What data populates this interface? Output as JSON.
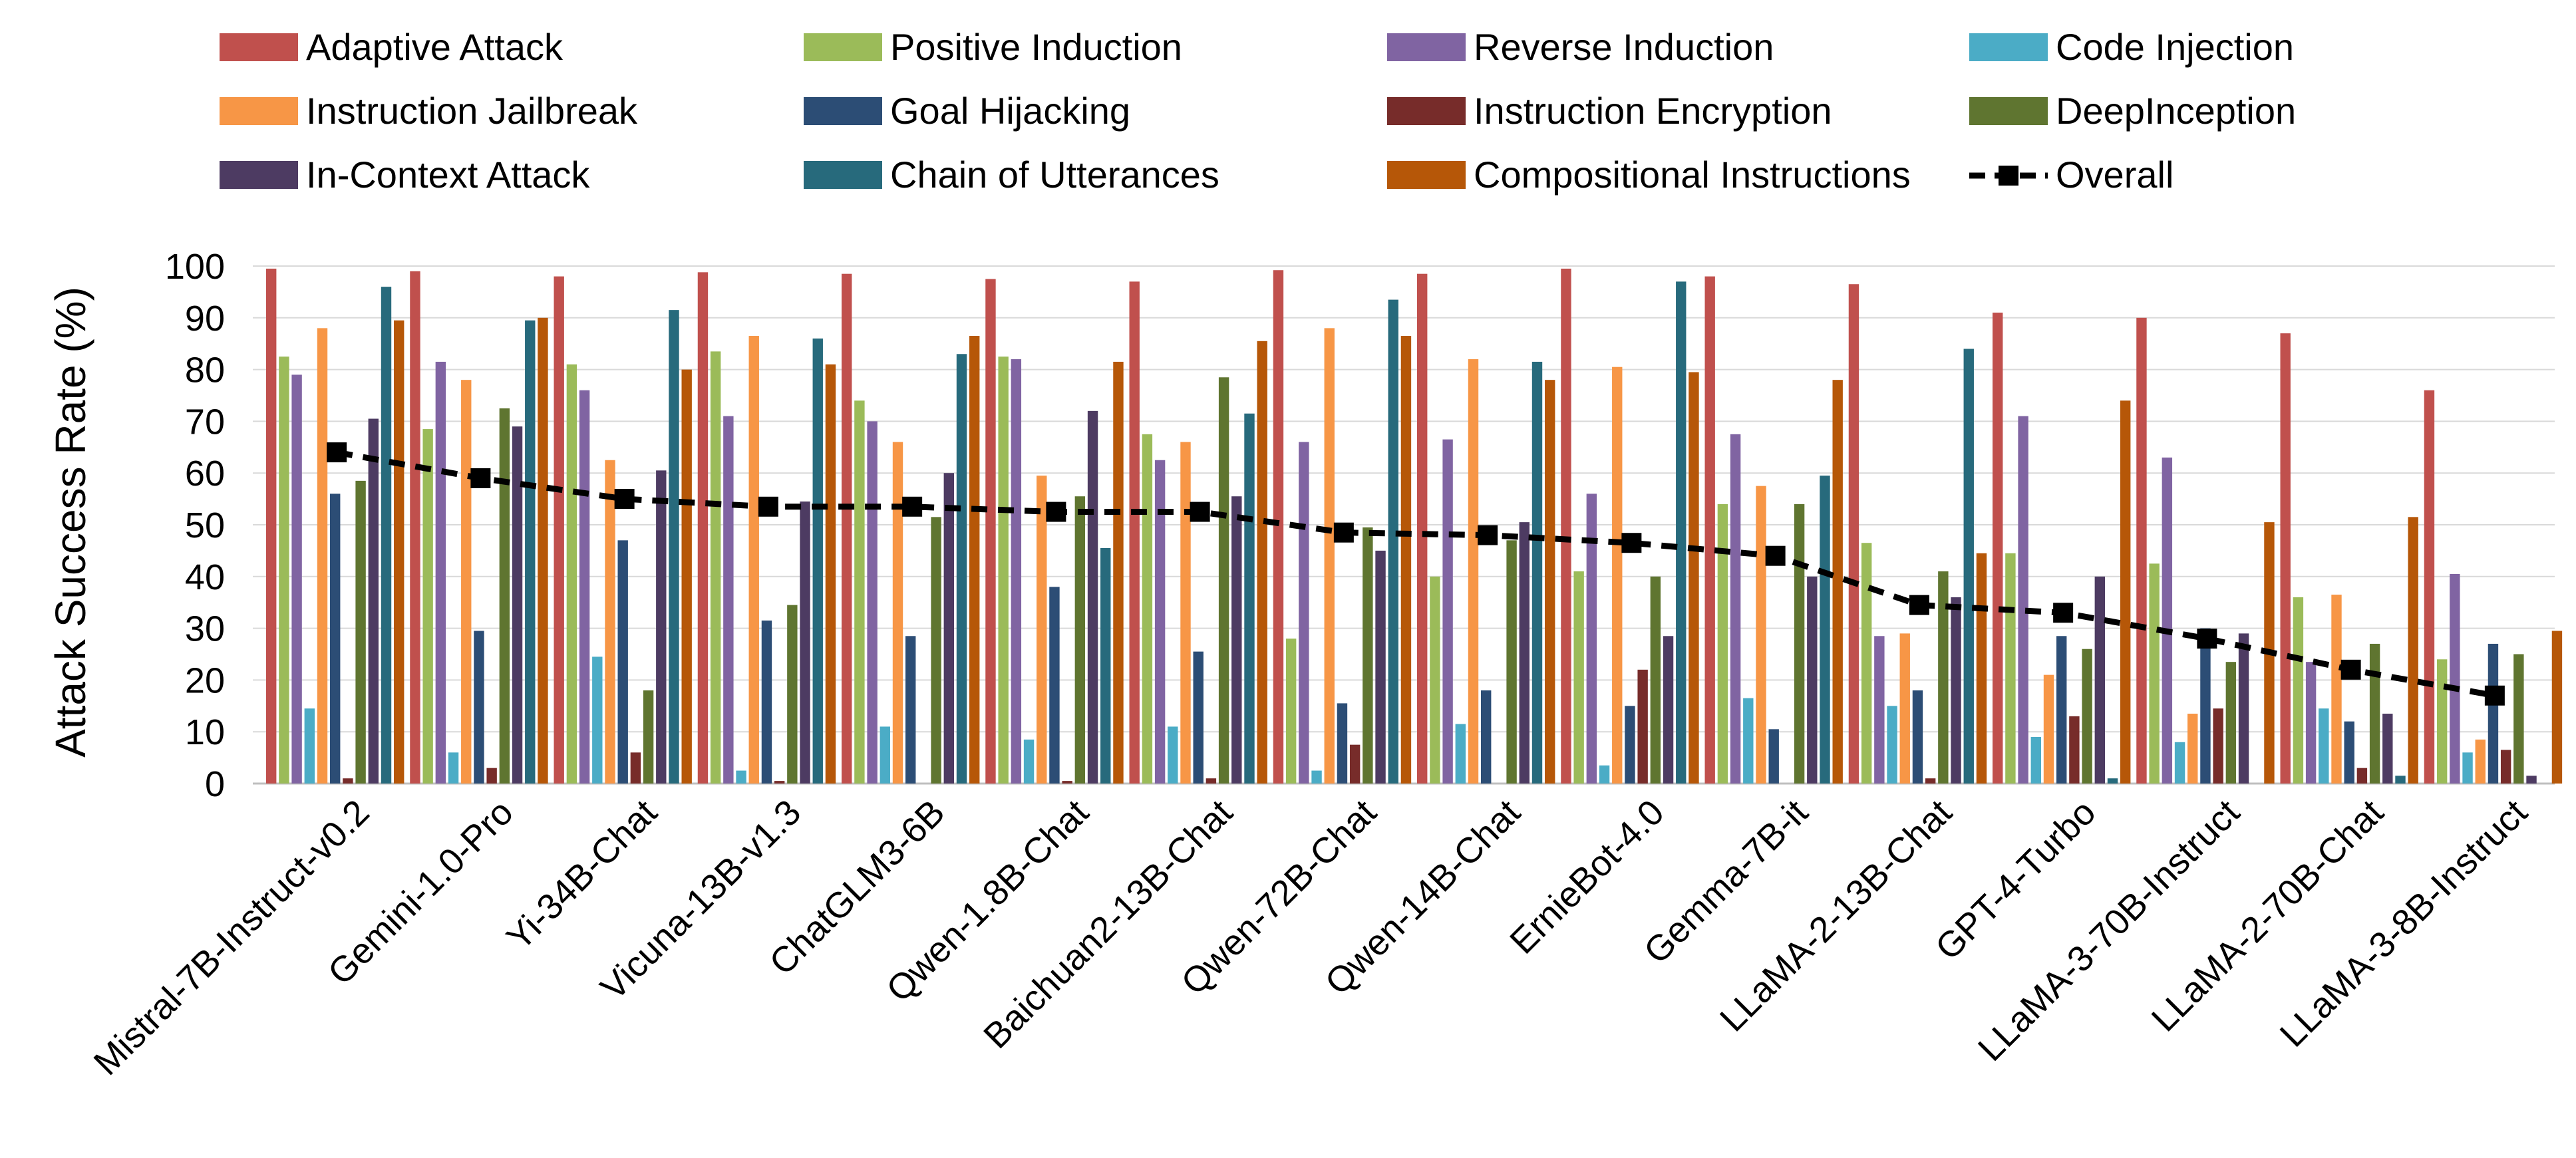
{
  "chart_data": {
    "type": "bar",
    "title": "",
    "xlabel": "",
    "ylabel": "Attack Success Rate (%)",
    "ylim": [
      0,
      100
    ],
    "yticks": [
      0,
      10,
      20,
      30,
      40,
      50,
      60,
      70,
      80,
      90,
      100
    ],
    "grid": "horizontal",
    "legend_position": "top",
    "categories": [
      "Mistral-7B-Instruct-v0.2",
      "Gemini-1.0-Pro",
      "Yi-34B-Chat",
      "Vicuna-13B-v1.3",
      "ChatGLM3-6B",
      "Qwen-1.8B-Chat",
      "Baichuan2-13B-Chat",
      "Qwen-72B-Chat",
      "Qwen-14B-Chat",
      "ErnieBot-4.0",
      "Gemma-7B-it",
      "LLaMA-2-13B-Chat",
      "GPT-4-Turbo",
      "LLaMA-3-70B-Instruct",
      "LLaMA-2-70B-Chat",
      "LLaMA-3-8B-Instruct"
    ],
    "series": [
      {
        "name": "Adaptive Attack",
        "color": "#C0504D",
        "values": [
          99.5,
          99,
          98,
          98.8,
          98.5,
          97.5,
          97,
          99.2,
          98.5,
          99.5,
          98,
          96.5,
          91,
          90,
          87,
          76
        ]
      },
      {
        "name": "Positive Induction",
        "color": "#9BBB59",
        "values": [
          82.5,
          68.5,
          81,
          83.5,
          74,
          82.5,
          67.5,
          28,
          40,
          41,
          54,
          46.5,
          44.5,
          42.5,
          36,
          24
        ]
      },
      {
        "name": "Reverse Induction",
        "color": "#8064A2",
        "values": [
          79,
          81.5,
          76,
          71,
          70,
          82,
          62.5,
          66,
          66.5,
          56,
          67.5,
          28.5,
          71,
          63,
          23.5,
          40.5
        ]
      },
      {
        "name": "Code Injection",
        "color": "#4BACC6",
        "values": [
          14.5,
          6,
          24.5,
          2.5,
          11,
          8.5,
          11,
          2.5,
          11.5,
          3.5,
          16.5,
          15,
          9,
          8,
          14.5,
          6
        ]
      },
      {
        "name": "Instruction Jailbreak",
        "color": "#F79646",
        "values": [
          88,
          78,
          62.5,
          86.5,
          66,
          59.5,
          66,
          88,
          82,
          80.5,
          57.5,
          29,
          21,
          13.5,
          36.5,
          8.5
        ]
      },
      {
        "name": "Goal Hijacking",
        "color": "#2C4D75",
        "values": [
          56,
          29.5,
          47,
          31.5,
          28.5,
          38,
          25.5,
          15.5,
          18,
          15,
          10.5,
          18,
          28.5,
          30,
          12,
          27
        ]
      },
      {
        "name": "Instruction Encryption",
        "color": "#772C2A",
        "values": [
          1,
          3,
          6,
          0.5,
          0,
          0.5,
          1,
          7.5,
          0,
          22,
          0,
          1,
          13,
          14.5,
          3,
          6.5
        ]
      },
      {
        "name": "DeepInception",
        "color": "#5F7530",
        "values": [
          58.5,
          72.5,
          18,
          34.5,
          51.5,
          55.5,
          78.5,
          49.5,
          47,
          40,
          54,
          41,
          26,
          23.5,
          27,
          25
        ]
      },
      {
        "name": "In-Context Attack",
        "color": "#4D3B62",
        "values": [
          70.5,
          69,
          60.5,
          54.5,
          60,
          72,
          55.5,
          45,
          50.5,
          28.5,
          40,
          36,
          40,
          29,
          13.5,
          1.5
        ]
      },
      {
        "name": "Chain of Utterances",
        "color": "#276A7C",
        "values": [
          96,
          89.5,
          91.5,
          86,
          83,
          45.5,
          71.5,
          93.5,
          81.5,
          97,
          59.5,
          84,
          1,
          0,
          1.5,
          0
        ]
      },
      {
        "name": "Compositional Instructions",
        "color": "#B65708",
        "values": [
          89.5,
          90,
          80,
          81,
          86.5,
          81.5,
          85.5,
          86.5,
          78,
          79.5,
          78,
          44.5,
          74,
          50.5,
          51.5,
          29.5
        ]
      },
      {
        "name": "Overall",
        "color": "#000000",
        "type": "line",
        "values": [
          64,
          59,
          55,
          53.5,
          53.5,
          52.5,
          52.5,
          48.5,
          48,
          46.5,
          44,
          34.5,
          33,
          28,
          22,
          17
        ]
      }
    ]
  }
}
